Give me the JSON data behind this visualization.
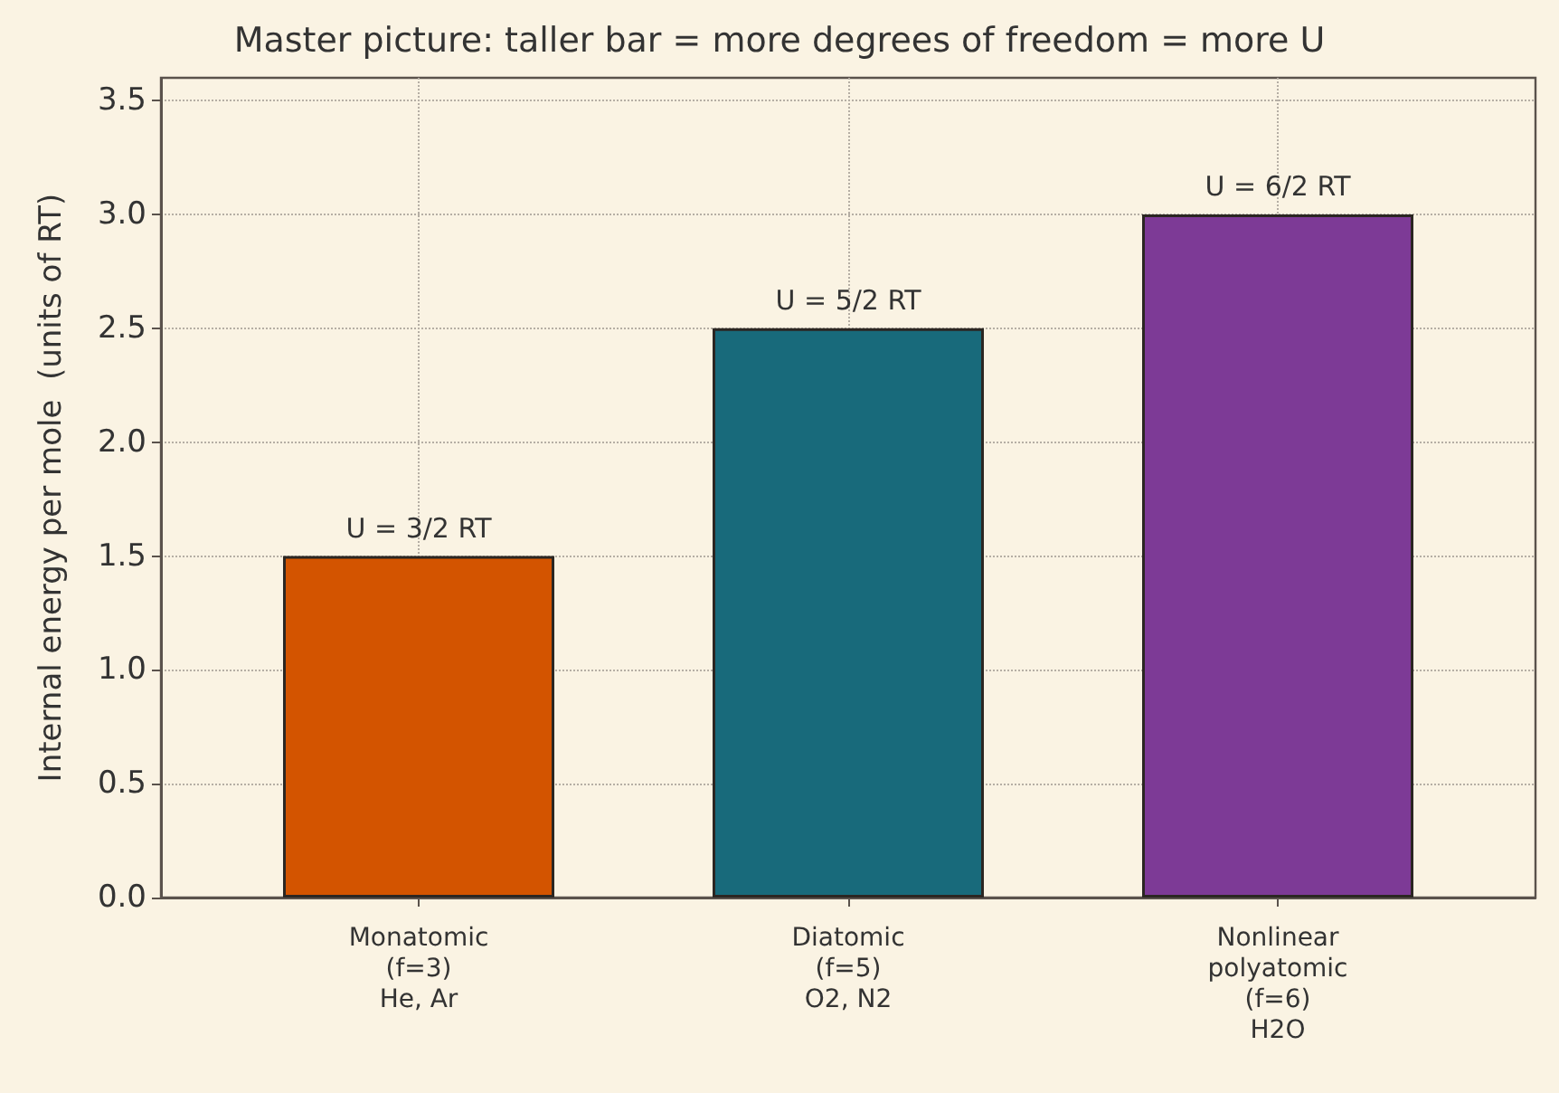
{
  "chart_data": {
    "type": "bar",
    "title": "Master picture: taller bar = more degrees of freedom = more U",
    "ylabel": "Internal energy per mole  (units of RT)",
    "categories": [
      "Monatomic\n(f=3)\nHe, Ar",
      "Diatomic\n(f=5)\nO2, N2",
      "Nonlinear\npolyatomic\n(f=6)\nH2O"
    ],
    "values": [
      1.5,
      2.5,
      3.0
    ],
    "colors": [
      "#d35400",
      "#186a7b",
      "#7d3a96"
    ],
    "value_labels": [
      "U = 3/2 RT",
      "U = 5/2 RT",
      "U = 6/2 RT"
    ],
    "ylim": [
      0,
      3.6
    ],
    "yticks": [
      {
        "value": 0,
        "label": "0.0"
      },
      {
        "value": 0.5,
        "label": "0.5"
      },
      {
        "value": 1,
        "label": "1.0"
      },
      {
        "value": 1.5,
        "label": "1.5"
      },
      {
        "value": 2,
        "label": "2.0"
      },
      {
        "value": 2.5,
        "label": "2.5"
      },
      {
        "value": 3,
        "label": "3.0"
      },
      {
        "value": 3.5,
        "label": "3.5"
      }
    ],
    "grid": true
  }
}
